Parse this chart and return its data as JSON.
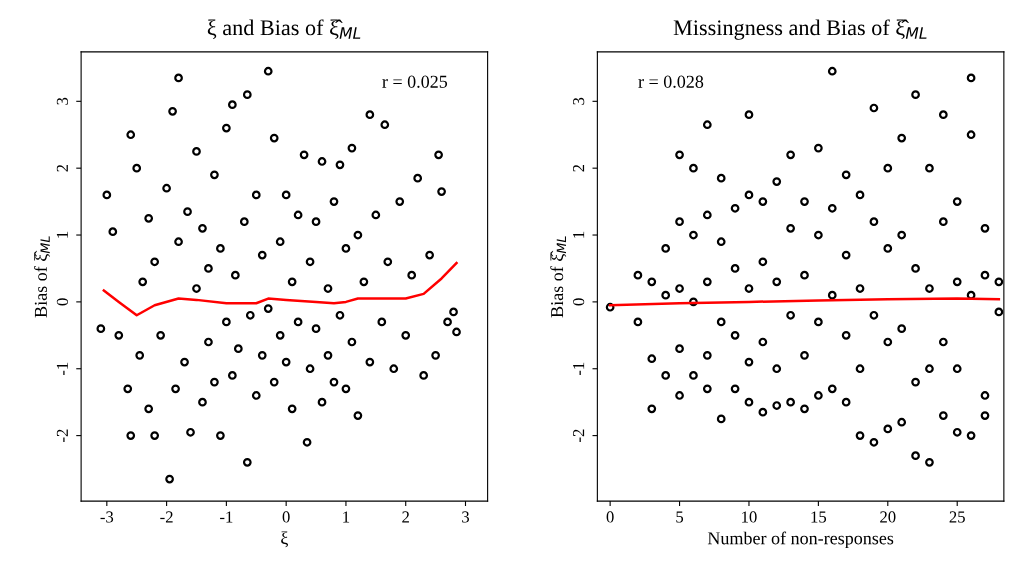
{
  "chart_data": [
    {
      "type": "scatter",
      "title": "ξ and Bias of ξ̂$_{ML}$",
      "xlabel": "ξ",
      "ylabel": "Bias of ξ̂$_{ML}$",
      "xlim": [
        -3.43,
        3.37
      ],
      "ylim": [
        -2.98,
        3.74
      ],
      "xticks": [
        -3,
        -2,
        -1,
        0,
        1,
        2,
        3
      ],
      "yticks": [
        -2,
        -1,
        0,
        1,
        2,
        3
      ],
      "grid": false,
      "annotations": [
        "r = 0.025"
      ],
      "series": [
        {
          "marker": "circle",
          "color": "#000000",
          "x": [
            -3.1,
            -3.0,
            -2.9,
            -2.8,
            -2.65,
            -2.6,
            -2.6,
            -2.5,
            -2.45,
            -2.4,
            -2.3,
            -2.3,
            -2.2,
            -2.2,
            -2.1,
            -2.0,
            -1.95,
            -1.9,
            -1.85,
            -1.8,
            -1.8,
            -1.7,
            -1.65,
            -1.6,
            -1.5,
            -1.5,
            -1.4,
            -1.4,
            -1.3,
            -1.3,
            -1.2,
            -1.2,
            -1.1,
            -1.1,
            -1.0,
            -1.0,
            -0.9,
            -0.9,
            -0.85,
            -0.8,
            -0.7,
            -0.65,
            -0.65,
            -0.6,
            -0.5,
            -0.5,
            -0.4,
            -0.4,
            -0.3,
            -0.3,
            -0.2,
            -0.2,
            -0.1,
            -0.1,
            0.0,
            0.0,
            0.1,
            0.1,
            0.2,
            0.2,
            0.3,
            0.35,
            0.4,
            0.4,
            0.5,
            0.5,
            0.6,
            0.6,
            0.7,
            0.7,
            0.8,
            0.8,
            0.9,
            0.9,
            1.0,
            1.0,
            1.1,
            1.1,
            1.2,
            1.2,
            1.3,
            1.4,
            1.4,
            1.5,
            1.6,
            1.65,
            1.7,
            1.8,
            1.9,
            2.0,
            2.1,
            2.2,
            2.3,
            2.4,
            2.5,
            2.55,
            2.6,
            2.7,
            2.8,
            2.85
          ],
          "values": [
            -0.4,
            1.6,
            1.05,
            -0.5,
            -1.3,
            2.5,
            -2.0,
            2.0,
            -0.8,
            0.3,
            -1.6,
            1.25,
            -2.0,
            0.6,
            -0.5,
            1.7,
            -2.65,
            2.85,
            -1.3,
            3.35,
            0.9,
            -0.9,
            1.35,
            -1.95,
            2.25,
            0.2,
            -1.5,
            1.1,
            0.5,
            -0.6,
            1.9,
            -1.2,
            -2.0,
            0.8,
            -0.3,
            2.6,
            2.95,
            -1.1,
            0.4,
            -0.7,
            1.2,
            3.1,
            -2.4,
            -0.2,
            1.6,
            -1.4,
            0.7,
            -0.8,
            3.45,
            -0.1,
            2.45,
            -1.2,
            0.9,
            -0.5,
            1.6,
            -0.9,
            0.3,
            -1.6,
            1.3,
            -0.3,
            2.2,
            -2.1,
            0.6,
            -1.0,
            1.2,
            -0.4,
            2.1,
            -1.5,
            0.2,
            -0.8,
            1.5,
            -1.2,
            2.05,
            -0.2,
            0.8,
            -1.3,
            2.3,
            -0.6,
            1.0,
            -1.7,
            0.3,
            2.8,
            -0.9,
            1.3,
            -0.3,
            2.65,
            0.6,
            -1.0,
            1.5,
            -0.5,
            0.4,
            1.85,
            -1.1,
            0.7,
            -0.8,
            2.2,
            1.65,
            -0.3,
            -0.15,
            -0.45
          ]
        },
        {
          "type": "line",
          "marker": "none",
          "color": "#ff0000",
          "x": [
            -3.05,
            -2.8,
            -2.5,
            -2.2,
            -1.8,
            -1.5,
            -1.0,
            -0.5,
            -0.3,
            0.0,
            0.5,
            0.8,
            1.0,
            1.2,
            1.5,
            2.0,
            2.3,
            2.6,
            2.85
          ],
          "values": [
            0.17,
            0.0,
            -0.2,
            -0.05,
            0.05,
            0.03,
            -0.02,
            -0.02,
            0.05,
            0.03,
            0.0,
            -0.02,
            0.0,
            0.05,
            0.05,
            0.05,
            0.12,
            0.35,
            0.58
          ]
        }
      ]
    },
    {
      "type": "scatter",
      "title": "Missingness and Bias of ξ̂$_{ML}$",
      "xlabel": "Number of non-responses",
      "ylabel": "Bias of ξ̂$_{ML}$",
      "xlim": [
        -0.92,
        28.36
      ],
      "ylim": [
        -2.98,
        3.74
      ],
      "xticks": [
        0,
        5,
        10,
        15,
        20,
        25
      ],
      "yticks": [
        -2,
        -1,
        0,
        1,
        2,
        3
      ],
      "grid": false,
      "annotations": [
        "r = 0.028"
      ],
      "series": [
        {
          "marker": "circle",
          "color": "#000000",
          "x": [
            0,
            2,
            2,
            3,
            3,
            3,
            4,
            4,
            4,
            5,
            5,
            5,
            5,
            5,
            6,
            6,
            6,
            6,
            7,
            7,
            7,
            7,
            7,
            8,
            8,
            8,
            8,
            9,
            9,
            9,
            9,
            10,
            10,
            10,
            10,
            10,
            11,
            11,
            11,
            11,
            12,
            12,
            12,
            12,
            13,
            13,
            13,
            13,
            14,
            14,
            14,
            14,
            15,
            15,
            15,
            15,
            16,
            16,
            16,
            16,
            17,
            17,
            17,
            17,
            18,
            18,
            18,
            18,
            19,
            19,
            19,
            19,
            20,
            20,
            20,
            20,
            21,
            21,
            21,
            21,
            22,
            22,
            22,
            22,
            23,
            23,
            23,
            23,
            24,
            24,
            24,
            24,
            25,
            25,
            25,
            25,
            26,
            26,
            26,
            26,
            27,
            27,
            27,
            27,
            28,
            28
          ],
          "values": [
            -0.08,
            0.4,
            -0.3,
            0.3,
            -0.85,
            -1.6,
            0.8,
            0.1,
            -1.1,
            2.2,
            1.2,
            0.2,
            -0.7,
            -1.4,
            2.0,
            1.0,
            0.0,
            -1.1,
            2.65,
            1.3,
            0.3,
            -0.8,
            -1.3,
            1.85,
            0.9,
            -0.3,
            -1.75,
            1.4,
            0.5,
            -0.5,
            -1.3,
            2.8,
            1.6,
            0.2,
            -0.9,
            -1.5,
            1.5,
            0.6,
            -0.6,
            -1.65,
            1.8,
            0.3,
            -1.0,
            -1.55,
            2.2,
            1.1,
            -0.2,
            -1.5,
            1.5,
            0.4,
            -0.8,
            -1.6,
            2.3,
            1.0,
            -0.3,
            -1.4,
            3.45,
            1.4,
            0.1,
            -1.3,
            1.9,
            0.7,
            -0.5,
            -1.5,
            1.6,
            0.2,
            -1.0,
            -2.0,
            2.9,
            1.2,
            -0.2,
            -2.1,
            2.0,
            0.8,
            -0.6,
            -1.9,
            2.45,
            1.0,
            -0.4,
            -1.8,
            3.1,
            0.5,
            -1.2,
            -2.3,
            2.0,
            0.2,
            -1.0,
            -2.4,
            2.8,
            1.2,
            -0.6,
            -1.7,
            1.5,
            0.3,
            -1.0,
            -1.95,
            3.35,
            2.5,
            0.1,
            -2.0,
            1.1,
            0.4,
            -1.4,
            -1.7,
            0.3,
            -0.15
          ]
        },
        {
          "type": "line",
          "marker": "none",
          "color": "#ff0000",
          "x": [
            0,
            5,
            10,
            15,
            20,
            25,
            28
          ],
          "values": [
            -0.05,
            -0.02,
            0.0,
            0.02,
            0.04,
            0.05,
            0.04
          ]
        }
      ]
    }
  ]
}
